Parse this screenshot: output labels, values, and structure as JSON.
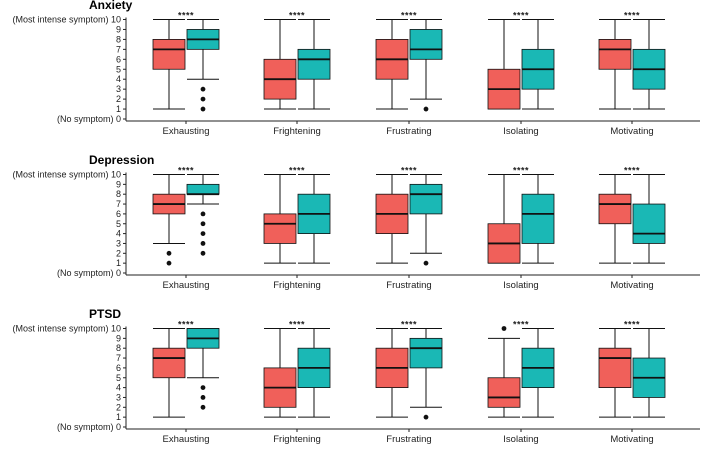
{
  "chart_data": [
    {
      "type": "boxplot",
      "title": "Anxiety",
      "ylim": [
        0,
        10
      ],
      "yticks": [
        0,
        1,
        2,
        3,
        4,
        5,
        6,
        7,
        8,
        9,
        10
      ],
      "ytick_labels": {
        "0": "(No symptom) 0",
        "10": "(Most intense symptom) 10"
      },
      "colors": {
        "red": "#f0605a",
        "teal": "#1ab8b5"
      },
      "categories": [
        "Exhausting",
        "Frightening",
        "Frustrating",
        "Isolating",
        "Motivating"
      ],
      "significance": [
        "****",
        "****",
        "****",
        "****",
        "****"
      ],
      "boxes": [
        [
          {
            "min": 1,
            "q1": 5,
            "median": 7,
            "q3": 8,
            "max": 10,
            "outliers": []
          },
          {
            "min": 4,
            "q1": 7,
            "median": 8,
            "q3": 9,
            "max": 10,
            "outliers": [
              1,
              2,
              3
            ]
          }
        ],
        [
          {
            "min": 1,
            "q1": 2,
            "median": 4,
            "q3": 6,
            "max": 10,
            "outliers": []
          },
          {
            "min": 1,
            "q1": 4,
            "median": 6,
            "q3": 7,
            "max": 10,
            "outliers": []
          }
        ],
        [
          {
            "min": 1,
            "q1": 4,
            "median": 6,
            "q3": 8,
            "max": 10,
            "outliers": []
          },
          {
            "min": 2,
            "q1": 6,
            "median": 7,
            "q3": 9,
            "max": 10,
            "outliers": [
              1
            ]
          }
        ],
        [
          {
            "min": 1,
            "q1": 1,
            "median": 3,
            "q3": 5,
            "max": 10,
            "outliers": []
          },
          {
            "min": 1,
            "q1": 3,
            "median": 5,
            "q3": 7,
            "max": 10,
            "outliers": []
          }
        ],
        [
          {
            "min": 1,
            "q1": 5,
            "median": 7,
            "q3": 8,
            "max": 10,
            "outliers": []
          },
          {
            "min": 1,
            "q1": 3,
            "median": 5,
            "q3": 7,
            "max": 10,
            "outliers": []
          }
        ]
      ]
    },
    {
      "type": "boxplot",
      "title": "Depression",
      "ylim": [
        0,
        10
      ],
      "yticks": [
        0,
        1,
        2,
        3,
        4,
        5,
        6,
        7,
        8,
        9,
        10
      ],
      "ytick_labels": {
        "0": "(No symptom) 0",
        "10": "(Most intense symptom) 10"
      },
      "colors": {
        "red": "#f0605a",
        "teal": "#1ab8b5"
      },
      "categories": [
        "Exhausting",
        "Frightening",
        "Frustrating",
        "Isolating",
        "Motivating"
      ],
      "significance": [
        "****",
        "****",
        "****",
        "****",
        "****"
      ],
      "boxes": [
        [
          {
            "min": 3,
            "q1": 6,
            "median": 7,
            "q3": 8,
            "max": 10,
            "outliers": [
              1,
              2
            ]
          },
          {
            "min": 7,
            "q1": 8,
            "median": 8,
            "q3": 9,
            "max": 10,
            "outliers": [
              2,
              3,
              4,
              5,
              6
            ]
          }
        ],
        [
          {
            "min": 1,
            "q1": 3,
            "median": 5,
            "q3": 6,
            "max": 10,
            "outliers": []
          },
          {
            "min": 1,
            "q1": 4,
            "median": 6,
            "q3": 8,
            "max": 10,
            "outliers": []
          }
        ],
        [
          {
            "min": 1,
            "q1": 4,
            "median": 6,
            "q3": 8,
            "max": 10,
            "outliers": []
          },
          {
            "min": 2,
            "q1": 6,
            "median": 8,
            "q3": 9,
            "max": 10,
            "outliers": [
              1
            ]
          }
        ],
        [
          {
            "min": 1,
            "q1": 1,
            "median": 3,
            "q3": 5,
            "max": 10,
            "outliers": []
          },
          {
            "min": 1,
            "q1": 3,
            "median": 6,
            "q3": 8,
            "max": 10,
            "outliers": []
          }
        ],
        [
          {
            "min": 1,
            "q1": 5,
            "median": 7,
            "q3": 8,
            "max": 10,
            "outliers": []
          },
          {
            "min": 1,
            "q1": 3,
            "median": 4,
            "q3": 7,
            "max": 10,
            "outliers": []
          }
        ]
      ]
    },
    {
      "type": "boxplot",
      "title": "PTSD",
      "ylim": [
        0,
        10
      ],
      "yticks": [
        0,
        1,
        2,
        3,
        4,
        5,
        6,
        7,
        8,
        9,
        10
      ],
      "ytick_labels": {
        "0": "(No symptom) 0",
        "10": "(Most intense symptom) 10"
      },
      "colors": {
        "red": "#f0605a",
        "teal": "#1ab8b5"
      },
      "categories": [
        "Exhausting",
        "Frightening",
        "Frustrating",
        "Isolating",
        "Motivating"
      ],
      "significance": [
        "****",
        "****",
        "****",
        "****",
        "****"
      ],
      "boxes": [
        [
          {
            "min": 1,
            "q1": 5,
            "median": 7,
            "q3": 8,
            "max": 10,
            "outliers": []
          },
          {
            "min": 5,
            "q1": 8,
            "median": 9,
            "q3": 10,
            "max": 10,
            "outliers": [
              2,
              3,
              4
            ]
          }
        ],
        [
          {
            "min": 1,
            "q1": 2,
            "median": 4,
            "q3": 6,
            "max": 10,
            "outliers": []
          },
          {
            "min": 1,
            "q1": 4,
            "median": 6,
            "q3": 8,
            "max": 10,
            "outliers": []
          }
        ],
        [
          {
            "min": 1,
            "q1": 4,
            "median": 6,
            "q3": 8,
            "max": 10,
            "outliers": []
          },
          {
            "min": 2,
            "q1": 6,
            "median": 8,
            "q3": 9,
            "max": 10,
            "outliers": [
              1
            ]
          }
        ],
        [
          {
            "min": 1,
            "q1": 2,
            "median": 3,
            "q3": 5,
            "max": 9,
            "outliers": [
              10
            ]
          },
          {
            "min": 1,
            "q1": 4,
            "median": 6,
            "q3": 8,
            "max": 10,
            "outliers": []
          }
        ],
        [
          {
            "min": 1,
            "q1": 4,
            "median": 7,
            "q3": 8,
            "max": 10,
            "outliers": []
          },
          {
            "min": 1,
            "q1": 3,
            "median": 5,
            "q3": 7,
            "max": 10,
            "outliers": []
          }
        ]
      ]
    }
  ]
}
